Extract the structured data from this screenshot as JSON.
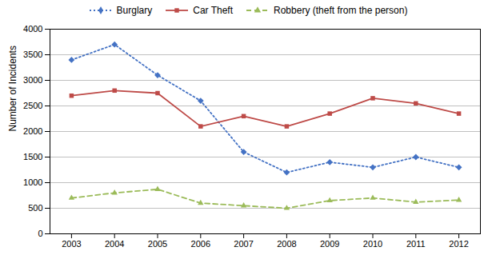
{
  "chart_data": {
    "type": "line",
    "x": [
      2003,
      2004,
      2005,
      2006,
      2007,
      2008,
      2009,
      2010,
      2011,
      2012
    ],
    "series": [
      {
        "name": "Burglary",
        "color": "#4472C4",
        "marker": "diamond",
        "line_style": "dotted",
        "values": [
          3400,
          3700,
          3100,
          2600,
          1600,
          1200,
          1400,
          1300,
          1500,
          1300
        ]
      },
      {
        "name": "Car Theft",
        "color": "#BE4B48",
        "marker": "square",
        "line_style": "solid",
        "values": [
          2700,
          2800,
          2750,
          2100,
          2300,
          2100,
          2350,
          2650,
          2550,
          2350
        ]
      },
      {
        "name": "Robbery (theft from the person)",
        "color": "#9BBB59",
        "marker": "triangle",
        "line_style": "dashed",
        "values": [
          700,
          800,
          870,
          600,
          550,
          500,
          650,
          700,
          620,
          660
        ]
      }
    ],
    "ylabel": "Number of Incidents",
    "xlim": [
      2002.5,
      2012.5
    ],
    "xticks": [
      2003,
      2004,
      2005,
      2006,
      2007,
      2008,
      2009,
      2010,
      2011,
      2012
    ],
    "ylim": [
      0,
      4000
    ],
    "yticks": [
      0,
      500,
      1000,
      1500,
      2000,
      2500,
      3000,
      3500,
      4000
    ],
    "grid": "y",
    "legend": "top"
  }
}
